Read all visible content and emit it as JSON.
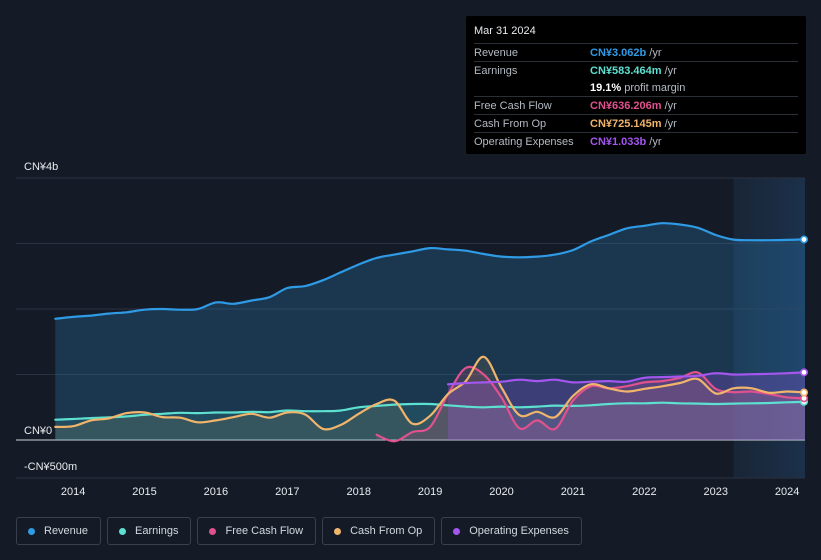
{
  "tooltip": {
    "date": "Mar 31 2024",
    "rows": [
      {
        "label": "Revenue",
        "value": "CN¥3.062b",
        "unit": "/yr",
        "color": "#2f9ae5"
      },
      {
        "label": "Earnings",
        "value": "CN¥583.464m",
        "unit": "/yr",
        "color": "#5ee0d0"
      },
      {
        "label": "",
        "value": "19.1%",
        "unit": "profit margin",
        "color": "#ffffff"
      },
      {
        "label": "Free Cash Flow",
        "value": "CN¥636.206m",
        "unit": "/yr",
        "color": "#e0518d"
      },
      {
        "label": "Cash From Op",
        "value": "CN¥725.145m",
        "unit": "/yr",
        "color": "#f0b56b"
      },
      {
        "label": "Operating Expenses",
        "value": "CN¥1.033b",
        "unit": "/yr",
        "color": "#a456ef"
      }
    ]
  },
  "legend": [
    {
      "name": "Revenue",
      "color": "#2f9ae5"
    },
    {
      "name": "Earnings",
      "color": "#5ee0d0"
    },
    {
      "name": "Free Cash Flow",
      "color": "#e0518d"
    },
    {
      "name": "Cash From Op",
      "color": "#f0b56b"
    },
    {
      "name": "Operating Expenses",
      "color": "#a456ef"
    }
  ],
  "chart_data": {
    "type": "line",
    "title": "",
    "xlabel": "",
    "ylabel": "",
    "ylim": [
      -500,
      4000
    ],
    "y_tick_labels": [
      "CN¥4b",
      "CN¥0",
      "-CN¥500m"
    ],
    "x_tick_labels": [
      "2014",
      "2015",
      "2016",
      "2017",
      "2018",
      "2019",
      "2020",
      "2021",
      "2022",
      "2023",
      "2024"
    ],
    "x_ticks": [
      2014,
      2015,
      2016,
      2017,
      2018,
      2019,
      2020,
      2021,
      2022,
      2023,
      2024
    ],
    "xlim": [
      2013.2,
      2024.25
    ],
    "highlight_from": 2023.25,
    "units": "CN¥ millions (annual, trailing)",
    "series": [
      {
        "name": "Revenue",
        "color": "#2f9ae5",
        "x": [
          2013.75,
          2014.0,
          2014.25,
          2014.5,
          2014.75,
          2015.0,
          2015.25,
          2015.5,
          2015.75,
          2016.0,
          2016.25,
          2016.5,
          2016.75,
          2017.0,
          2017.25,
          2017.5,
          2017.75,
          2018.0,
          2018.25,
          2018.5,
          2018.75,
          2019.0,
          2019.25,
          2019.5,
          2019.75,
          2020.0,
          2020.25,
          2020.5,
          2020.75,
          2021.0,
          2021.25,
          2021.5,
          2021.75,
          2022.0,
          2022.25,
          2022.5,
          2022.75,
          2023.0,
          2023.25,
          2023.5,
          2023.75,
          2024.0,
          2024.25
        ],
        "y": [
          1850,
          1880,
          1900,
          1930,
          1950,
          1990,
          2000,
          1990,
          2000,
          2100,
          2080,
          2130,
          2180,
          2320,
          2350,
          2440,
          2560,
          2680,
          2780,
          2830,
          2880,
          2930,
          2910,
          2890,
          2840,
          2800,
          2790,
          2800,
          2830,
          2900,
          3030,
          3130,
          3230,
          3270,
          3310,
          3290,
          3240,
          3130,
          3060,
          3050,
          3050,
          3055,
          3062
        ]
      },
      {
        "name": "Earnings",
        "color": "#5ee0d0",
        "x": [
          2013.75,
          2014.0,
          2014.25,
          2014.5,
          2014.75,
          2015.0,
          2015.25,
          2015.5,
          2015.75,
          2016.0,
          2016.25,
          2016.5,
          2016.75,
          2017.0,
          2017.25,
          2017.5,
          2017.75,
          2018.0,
          2018.25,
          2018.5,
          2018.75,
          2019.0,
          2019.25,
          2019.5,
          2019.75,
          2020.0,
          2020.25,
          2020.5,
          2020.75,
          2021.0,
          2021.25,
          2021.5,
          2021.75,
          2022.0,
          2022.25,
          2022.5,
          2022.75,
          2023.0,
          2023.25,
          2023.5,
          2023.75,
          2024.0,
          2024.25
        ],
        "y": [
          310,
          320,
          335,
          345,
          360,
          385,
          400,
          415,
          410,
          420,
          420,
          430,
          425,
          450,
          440,
          440,
          450,
          500,
          520,
          540,
          550,
          550,
          530,
          510,
          500,
          510,
          500,
          510,
          525,
          520,
          530,
          550,
          560,
          560,
          570,
          560,
          555,
          550,
          555,
          560,
          565,
          575,
          583
        ]
      },
      {
        "name": "Free Cash Flow",
        "color": "#e0518d",
        "x": [
          2018.25,
          2018.5,
          2018.75,
          2019.0,
          2019.25,
          2019.5,
          2019.75,
          2020.0,
          2020.25,
          2020.5,
          2020.75,
          2021.0,
          2021.25,
          2021.5,
          2021.75,
          2022.0,
          2022.25,
          2022.5,
          2022.75,
          2023.0,
          2023.25,
          2023.5,
          2023.75,
          2024.0,
          2024.25
        ],
        "y": [
          80,
          -20,
          120,
          200,
          700,
          1100,
          1000,
          650,
          180,
          300,
          170,
          600,
          820,
          790,
          820,
          880,
          900,
          950,
          1030,
          780,
          730,
          740,
          700,
          650,
          636
        ]
      },
      {
        "name": "Cash From Op",
        "color": "#f0b56b",
        "x": [
          2013.75,
          2014.0,
          2014.25,
          2014.5,
          2014.75,
          2015.0,
          2015.25,
          2015.5,
          2015.75,
          2016.0,
          2016.25,
          2016.5,
          2016.75,
          2017.0,
          2017.25,
          2017.5,
          2017.75,
          2018.0,
          2018.25,
          2018.5,
          2018.75,
          2019.0,
          2019.25,
          2019.5,
          2019.75,
          2020.0,
          2020.25,
          2020.5,
          2020.75,
          2021.0,
          2021.25,
          2021.5,
          2021.75,
          2022.0,
          2022.25,
          2022.5,
          2022.75,
          2023.0,
          2023.25,
          2023.5,
          2023.75,
          2024.0,
          2024.25
        ],
        "y": [
          200,
          210,
          300,
          330,
          410,
          420,
          350,
          340,
          270,
          300,
          350,
          400,
          340,
          420,
          390,
          170,
          230,
          400,
          550,
          600,
          250,
          370,
          700,
          900,
          1270,
          800,
          380,
          430,
          350,
          670,
          850,
          790,
          740,
          780,
          820,
          870,
          930,
          710,
          790,
          790,
          720,
          740,
          725
        ]
      },
      {
        "name": "Operating Expenses",
        "color": "#a456ef",
        "x": [
          2019.25,
          2019.5,
          2019.75,
          2020.0,
          2020.25,
          2020.5,
          2020.75,
          2021.0,
          2021.25,
          2021.5,
          2021.75,
          2022.0,
          2022.25,
          2022.5,
          2022.75,
          2023.0,
          2023.25,
          2023.5,
          2023.75,
          2024.0,
          2024.25
        ],
        "y": [
          850,
          870,
          880,
          890,
          920,
          900,
          920,
          880,
          890,
          900,
          890,
          950,
          960,
          970,
          980,
          1020,
          1000,
          1005,
          1010,
          1020,
          1033
        ]
      }
    ]
  }
}
